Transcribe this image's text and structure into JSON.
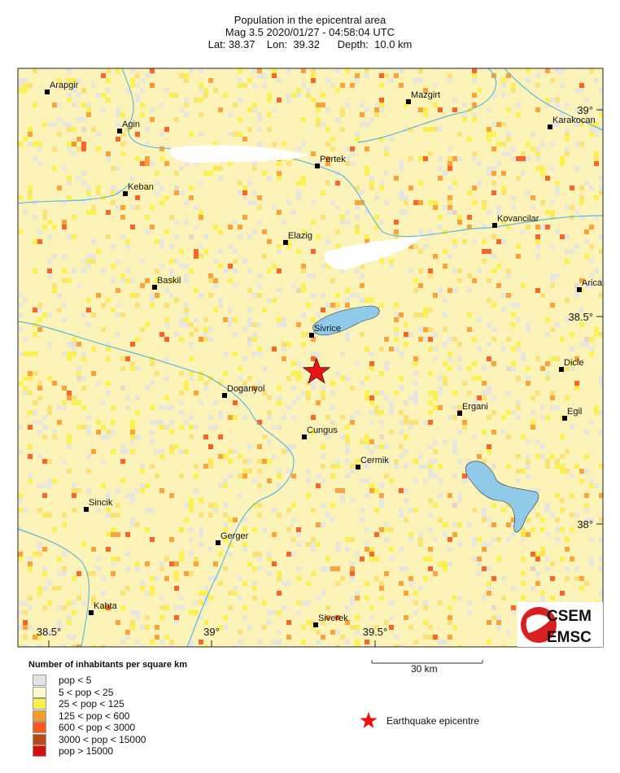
{
  "title": {
    "line1": "Population in the epicentral area",
    "line2": "Mag 3.5  2020/01/27 - 04:58:04 UTC",
    "line3": "Lat: 38.37    Lon:  39.32      Depth:  10.0 km"
  },
  "map": {
    "cities": [
      {
        "name": "Arapgir"
      },
      {
        "name": "Mazgirt"
      },
      {
        "name": "Agin"
      },
      {
        "name": "Karakocan"
      },
      {
        "name": "Pertek"
      },
      {
        "name": "Keban"
      },
      {
        "name": "Kovancilar"
      },
      {
        "name": "Elazig"
      },
      {
        "name": "Baskil"
      },
      {
        "name": "Arica"
      },
      {
        "name": "Sivrice"
      },
      {
        "name": "Dicle"
      },
      {
        "name": "Doganyol"
      },
      {
        "name": "Ergani"
      },
      {
        "name": "Egil"
      },
      {
        "name": "Cungus"
      },
      {
        "name": "Cermik"
      },
      {
        "name": "Sincik"
      },
      {
        "name": "Gerger"
      },
      {
        "name": "Kahta"
      },
      {
        "name": "Siverek"
      }
    ],
    "lat_labels": [
      "39°",
      "38.5°",
      "38°"
    ],
    "lon_labels": [
      "38.5°",
      "39°",
      "39.5°"
    ],
    "scale_label": "30 km",
    "logo": {
      "top": "CSEM",
      "bottom": "EMSC"
    },
    "epicentre_icon": "red-star-icon",
    "colors": {
      "water": "#8fcbe8",
      "river": "#5fb8e0",
      "epicentre": "#ee1111"
    }
  },
  "legend": {
    "title": "Number of inhabitants per square km",
    "items": [
      {
        "label": "pop < 5",
        "color": "#e4e4e4"
      },
      {
        "label": "5 < pop < 25",
        "color": "#fdf8c8"
      },
      {
        "label": "25 < pop < 125",
        "color": "#fdf046"
      },
      {
        "label": "125 < pop < 600",
        "color": "#f99a2c"
      },
      {
        "label": "600 < pop < 3000",
        "color": "#f8561c"
      },
      {
        "label": "3000 < pop < 15000",
        "color": "#b84a14"
      },
      {
        "label": "pop > 15000",
        "color": "#d80e0e"
      }
    ],
    "epicentre_label": "Earthquake epicentre"
  }
}
